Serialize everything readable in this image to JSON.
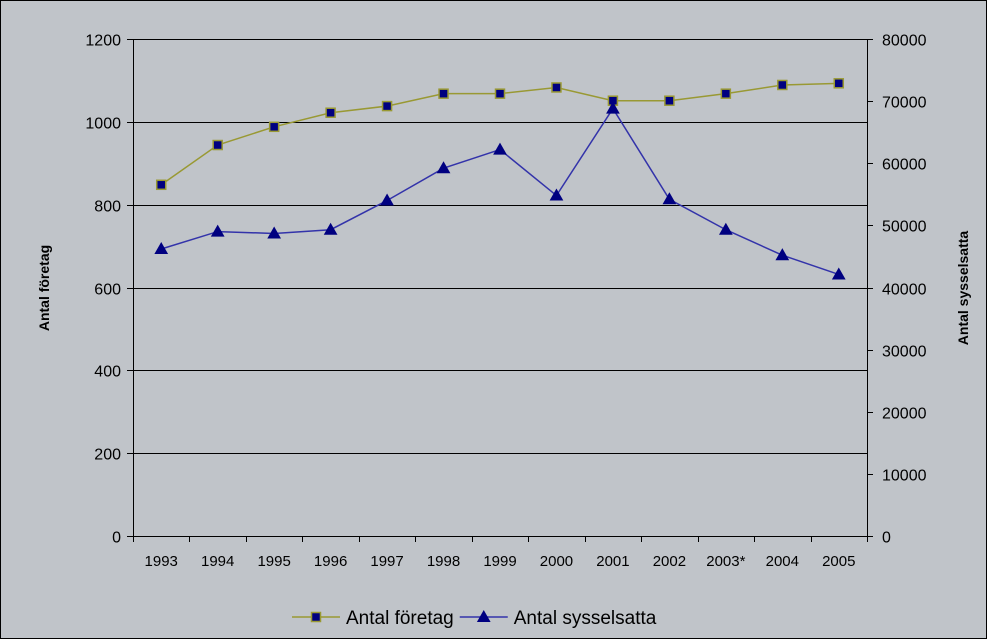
{
  "chart_data": {
    "type": "line",
    "title": "",
    "categories": [
      "1993",
      "1994",
      "1995",
      "1996",
      "1997",
      "1998",
      "1999",
      "2000",
      "2001",
      "2002",
      "2003*",
      "2004",
      "2005"
    ],
    "series": [
      {
        "name": "Antal företag",
        "axis": "left",
        "color": "#999933",
        "marker": "square",
        "marker_fill": "#000080",
        "values": [
          848,
          944,
          988,
          1022,
          1038,
          1068,
          1068,
          1083,
          1051,
          1051,
          1068,
          1089,
          1093
        ]
      },
      {
        "name": "Antal sysselsatta",
        "axis": "right",
        "color": "#3333aa",
        "marker": "triangle",
        "marker_fill": "#000080",
        "values": [
          46200,
          49000,
          48700,
          49300,
          54000,
          59200,
          62200,
          54800,
          68800,
          54200,
          49300,
          45200,
          42100
        ]
      }
    ],
    "y_left": {
      "label": "Antal företag",
      "range": [
        0,
        1200
      ],
      "ticks": [
        "0",
        "200",
        "400",
        "600",
        "800",
        "1000",
        "1200"
      ]
    },
    "y_right": {
      "label": "Antal sysselsatta",
      "range": [
        0,
        80000
      ],
      "ticks": [
        "0",
        "10000",
        "20000",
        "30000",
        "40000",
        "50000",
        "60000",
        "70000",
        "80000"
      ]
    },
    "grid": true,
    "legend_position": "bottom",
    "colors": {
      "background": "#c0c4c9",
      "gridline": "#000000",
      "axis": "#000000"
    }
  }
}
